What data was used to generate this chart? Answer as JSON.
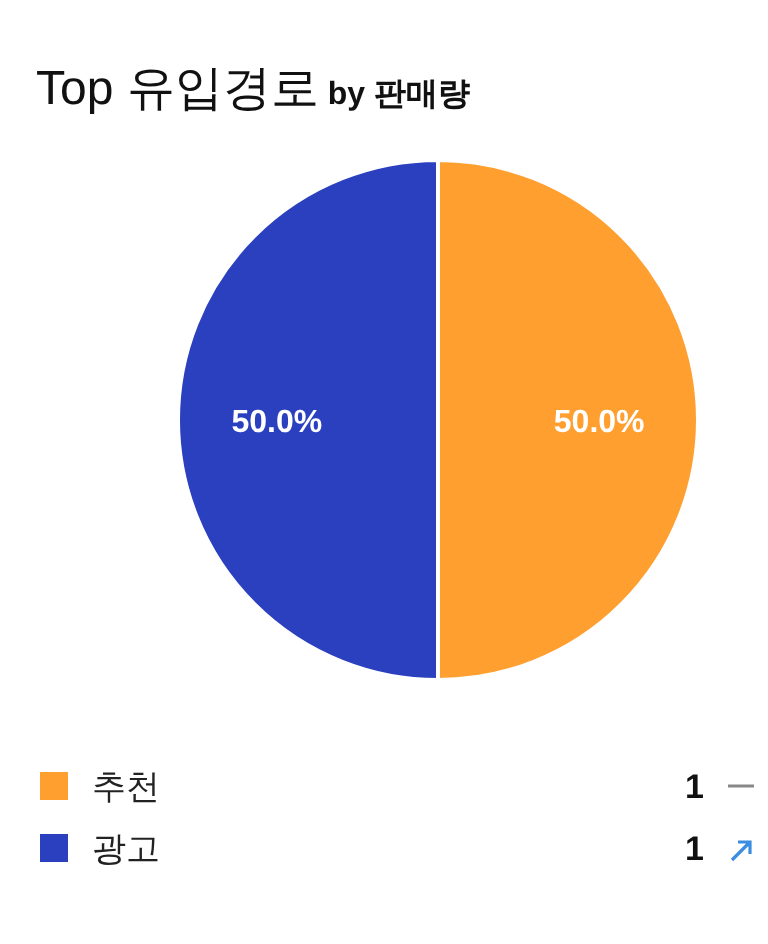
{
  "chart_data": {
    "type": "pie",
    "title": "Top 유입경로",
    "subtitle": "by 판매량",
    "categories": [
      "추천",
      "광고"
    ],
    "values": [
      50.0,
      50.0
    ],
    "annotations": [
      "1",
      "1"
    ],
    "colors": [
      "#ff9f2f",
      "#2b40bf"
    ],
    "value_labels": [
      "50.0%",
      "50.0%"
    ],
    "legend": "bottom"
  }
}
